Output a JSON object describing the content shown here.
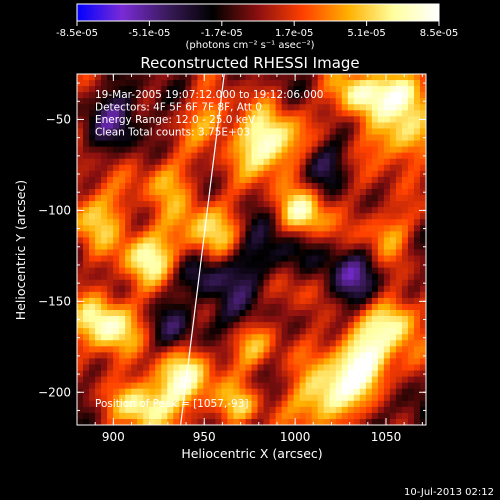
{
  "chart_data": {
    "type": "heatmap",
    "title": "Reconstructed RHESSI Image",
    "xlabel": "Heliocentric X (arcsec)",
    "ylabel": "Heliocentric Y (arcsec)",
    "xlim": [
      880,
      1072
    ],
    "ylim": [
      -218,
      -25
    ],
    "x_ticks": [
      900,
      950,
      1000,
      1050
    ],
    "y_ticks": [
      -50,
      -100,
      -150,
      -200
    ],
    "colorbar": {
      "ticks": [
        "-8.5e-05",
        "-5.1e-05",
        "-1.7e-05",
        "1.7e-05",
        "5.1e-05",
        "8.5e-05"
      ],
      "range": [
        -8.5e-05,
        8.5e-05
      ],
      "units_label": "(photons cm⁻² s⁻¹ asec⁻²)",
      "colormap": [
        "#0000ff",
        "#7a2bd6",
        "#3a1a5a",
        "#000000",
        "#8b1010",
        "#ff4000",
        "#ffb000",
        "#ffffa0",
        "#ffffff"
      ]
    },
    "annotations": [
      "19-Mar-2005 19:07:12.000 to 19:12:06.000",
      "Detectors: 4F 5F 6F 7F 8F, Att 0",
      "Energy Range: 12.0 - 25.0 keV",
      "Clean    Total counts: 3.75E+03"
    ],
    "peak_label": "Position of Peak = [1057,-93]",
    "peak": [
      1057,
      -93
    ],
    "limb_line": [
      [
        937,
        -218
      ],
      [
        961,
        -25
      ]
    ],
    "grid": false
  },
  "footer": {
    "timestamp": "10-Jul-2013 02:12"
  }
}
